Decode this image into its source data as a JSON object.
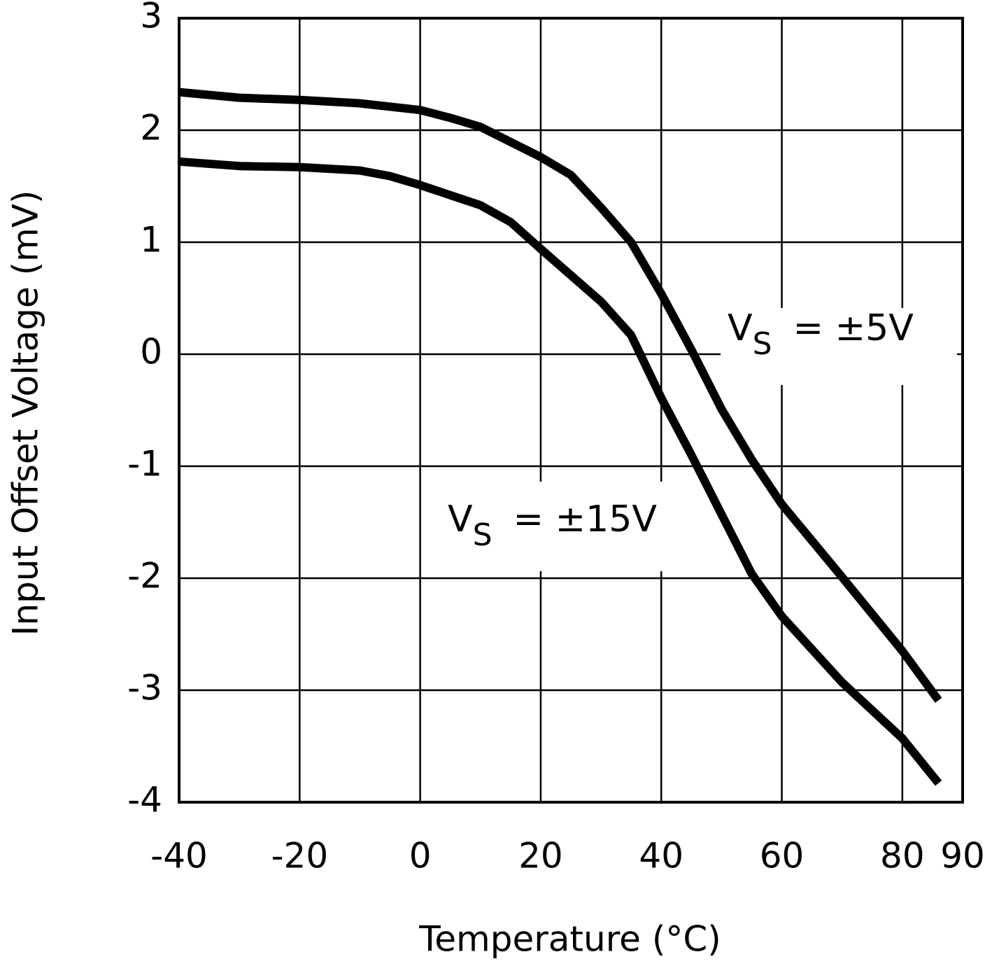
{
  "chart_data": {
    "type": "line",
    "x_label": "Temperature (°C)",
    "y_label": "Input Offset Voltage (mV)",
    "xlim": [
      -40,
      90
    ],
    "ylim": [
      -4,
      3
    ],
    "xticks": [
      -40,
      -20,
      0,
      20,
      40,
      60,
      80,
      90
    ],
    "yticks": [
      -4,
      -3,
      -2,
      -1,
      0,
      1,
      2,
      3
    ],
    "grid": true,
    "series": [
      {
        "label": {
          "main": "V",
          "sub": "S",
          "rest": "= ±5V"
        },
        "color": "#000000",
        "x": [
          -40,
          -30,
          -20,
          -10,
          0,
          5,
          10,
          20,
          25,
          30,
          35,
          40,
          45,
          50,
          55,
          60,
          70,
          80,
          86
        ],
        "values": [
          2.34,
          2.29,
          2.27,
          2.24,
          2.18,
          2.11,
          2.03,
          1.76,
          1.6,
          1.31,
          1.0,
          0.54,
          0.04,
          -0.49,
          -0.94,
          -1.34,
          -1.99,
          -2.65,
          -3.09
        ]
      },
      {
        "label": {
          "main": "V",
          "sub": "S",
          "rest": "= ±15V"
        },
        "color": "#000000",
        "x": [
          -40,
          -30,
          -20,
          -10,
          -5,
          0,
          10,
          15,
          20,
          30,
          35,
          40,
          45,
          50,
          55,
          60,
          70,
          80,
          86
        ],
        "values": [
          1.72,
          1.68,
          1.67,
          1.64,
          1.59,
          1.51,
          1.33,
          1.18,
          0.94,
          0.47,
          0.17,
          -0.39,
          -0.9,
          -1.43,
          -1.96,
          -2.34,
          -2.93,
          -3.43,
          -3.83
        ]
      }
    ]
  }
}
